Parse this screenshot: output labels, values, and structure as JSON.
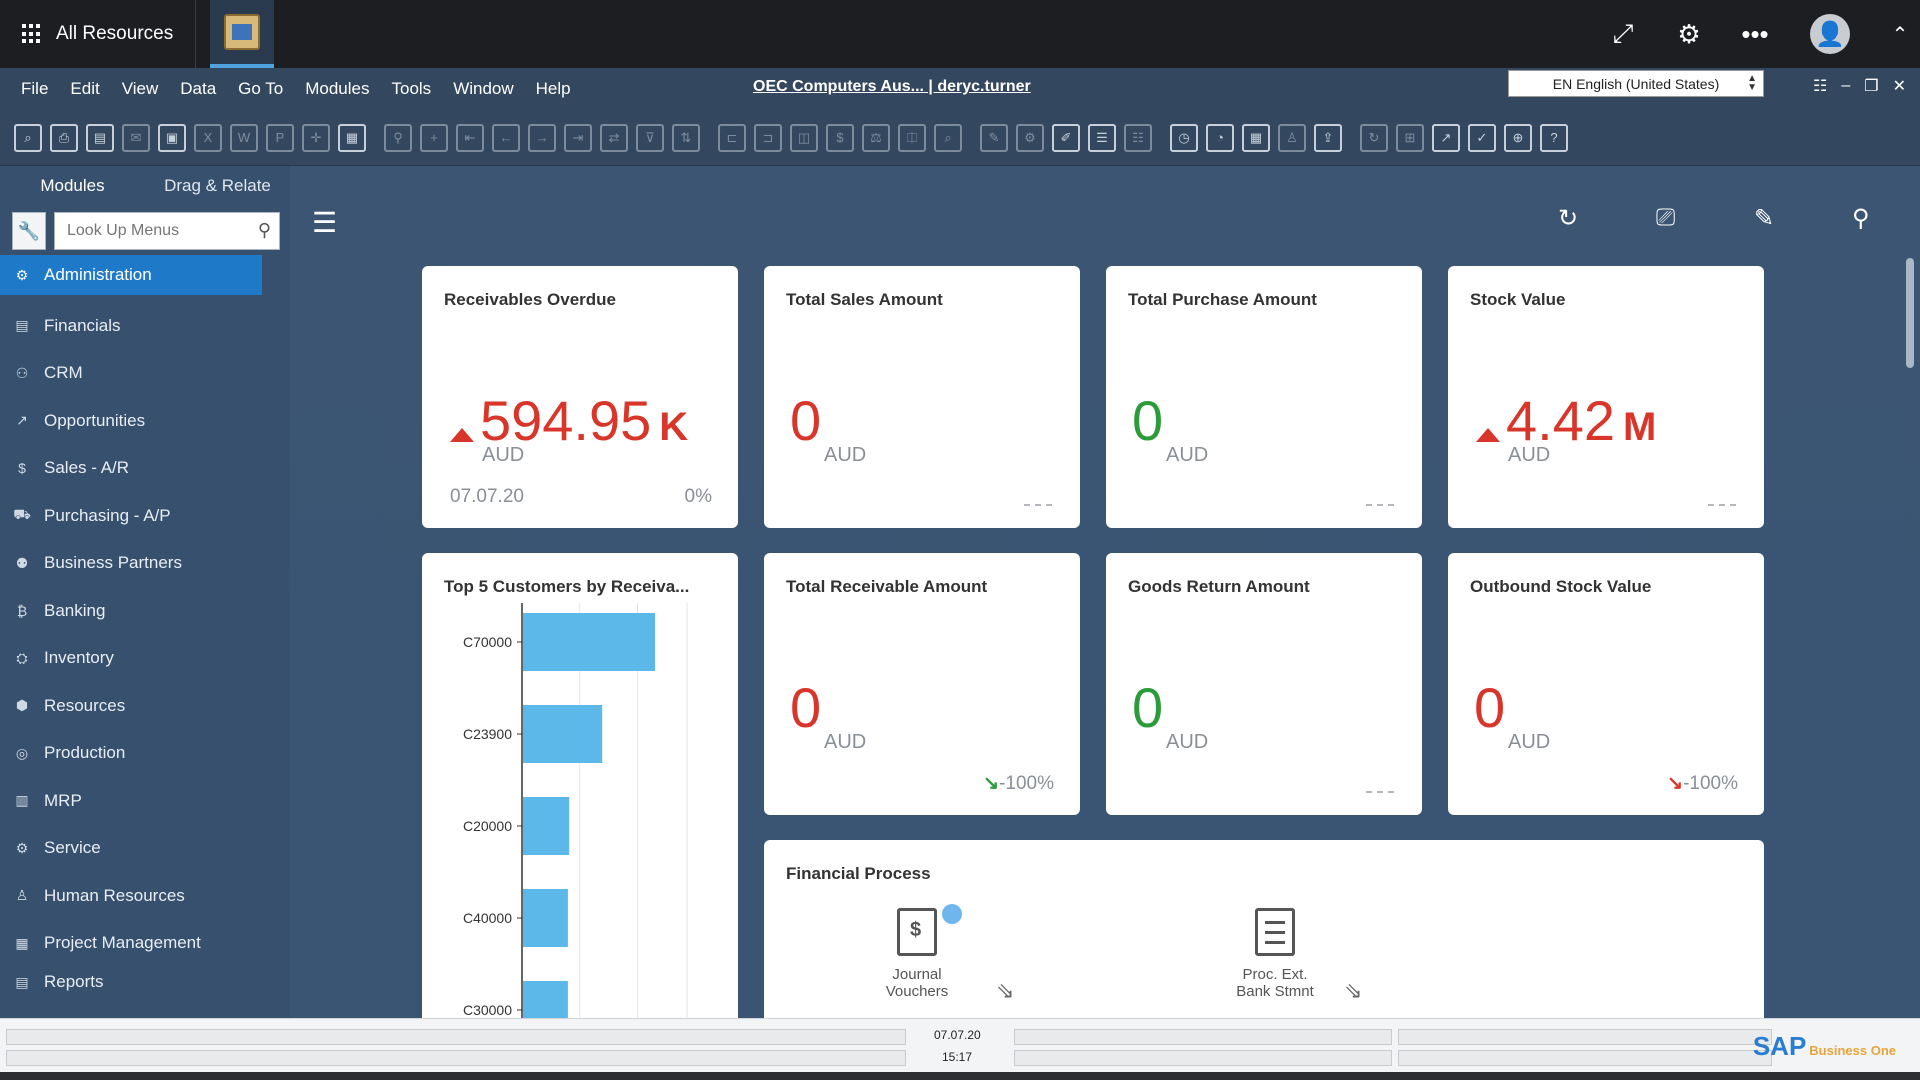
{
  "topbar": {
    "apps_label": "All Resources",
    "icons": [
      "expand-icon",
      "gear-icon",
      "more-icon",
      "user-avatar-icon",
      "chevron-up-icon"
    ]
  },
  "menubar": {
    "items": [
      "File",
      "Edit",
      "View",
      "Data",
      "Go To",
      "Modules",
      "Tools",
      "Window",
      "Help"
    ],
    "company": "OEC Computers Aus... | deryc.turner",
    "language": "EN English (United States)"
  },
  "sidebar": {
    "tabs": [
      "Modules",
      "Drag & Relate"
    ],
    "search_placeholder": "Look Up Menus",
    "items": [
      {
        "label": "Administration",
        "icon": "gear-icon"
      },
      {
        "label": "Financials",
        "icon": "ledger-icon"
      },
      {
        "label": "CRM",
        "icon": "people-icon"
      },
      {
        "label": "Opportunities",
        "icon": "chart-icon"
      },
      {
        "label": "Sales - A/R",
        "icon": "dollar-doc-icon"
      },
      {
        "label": "Purchasing - A/P",
        "icon": "cart-icon"
      },
      {
        "label": "Business Partners",
        "icon": "partners-icon"
      },
      {
        "label": "Banking",
        "icon": "bank-icon"
      },
      {
        "label": "Inventory",
        "icon": "box-icon"
      },
      {
        "label": "Resources",
        "icon": "resources-icon"
      },
      {
        "label": "Production",
        "icon": "production-icon"
      },
      {
        "label": "MRP",
        "icon": "mrp-icon"
      },
      {
        "label": "Service",
        "icon": "service-icon"
      },
      {
        "label": "Human Resources",
        "icon": "person-icon"
      },
      {
        "label": "Project Management",
        "icon": "project-icon"
      },
      {
        "label": "Reports",
        "icon": "report-icon"
      }
    ]
  },
  "cards": {
    "receivables_overdue": {
      "title": "Receivables Overdue",
      "value": "594.95",
      "suffix": "K",
      "unit": "AUD",
      "date": "07.07.20",
      "change": "0%"
    },
    "total_sales": {
      "title": "Total Sales Amount",
      "value": "0",
      "unit": "AUD"
    },
    "total_purchase": {
      "title": "Total Purchase Amount",
      "value": "0",
      "unit": "AUD"
    },
    "stock_value": {
      "title": "Stock Value",
      "value": "4.42",
      "suffix": "M",
      "unit": "AUD"
    },
    "top5": {
      "title": "Top 5 Customers by Receiva..."
    },
    "total_receivable": {
      "title": "Total Receivable Amount",
      "value": "0",
      "unit": "AUD",
      "change": "-100%"
    },
    "goods_return": {
      "title": "Goods Return Amount",
      "value": "0",
      "unit": "AUD"
    },
    "outbound_stock": {
      "title": "Outbound Stock Value",
      "value": "0",
      "unit": "AUD",
      "change": "-100%"
    },
    "financial_process": {
      "title": "Financial Process",
      "steps": [
        {
          "label_line1": "Journal",
          "label_line2": "Vouchers"
        },
        {
          "label_line1": "Proc. Ext.",
          "label_line2": "Bank Stmnt"
        }
      ]
    }
  },
  "chart_data": {
    "type": "bar",
    "orientation": "horizontal",
    "title": "Top 5 Customers by Receiva...",
    "categories": [
      "C70000",
      "C23900",
      "C20000",
      "C40000",
      "C30000"
    ],
    "values": [
      100,
      60,
      35,
      34,
      34
    ],
    "grid": true,
    "color": "#5bb8e8"
  },
  "statusbar": {
    "date": "07.07.20",
    "time": "15:17",
    "logo": "SAP",
    "logo_sub": "Business One"
  },
  "colors": {
    "accent": "#1f79c9",
    "negative": "#d9362b",
    "positive": "#2c9c3a",
    "sidebar": "#36506d",
    "content_bg": "#3b5573"
  }
}
